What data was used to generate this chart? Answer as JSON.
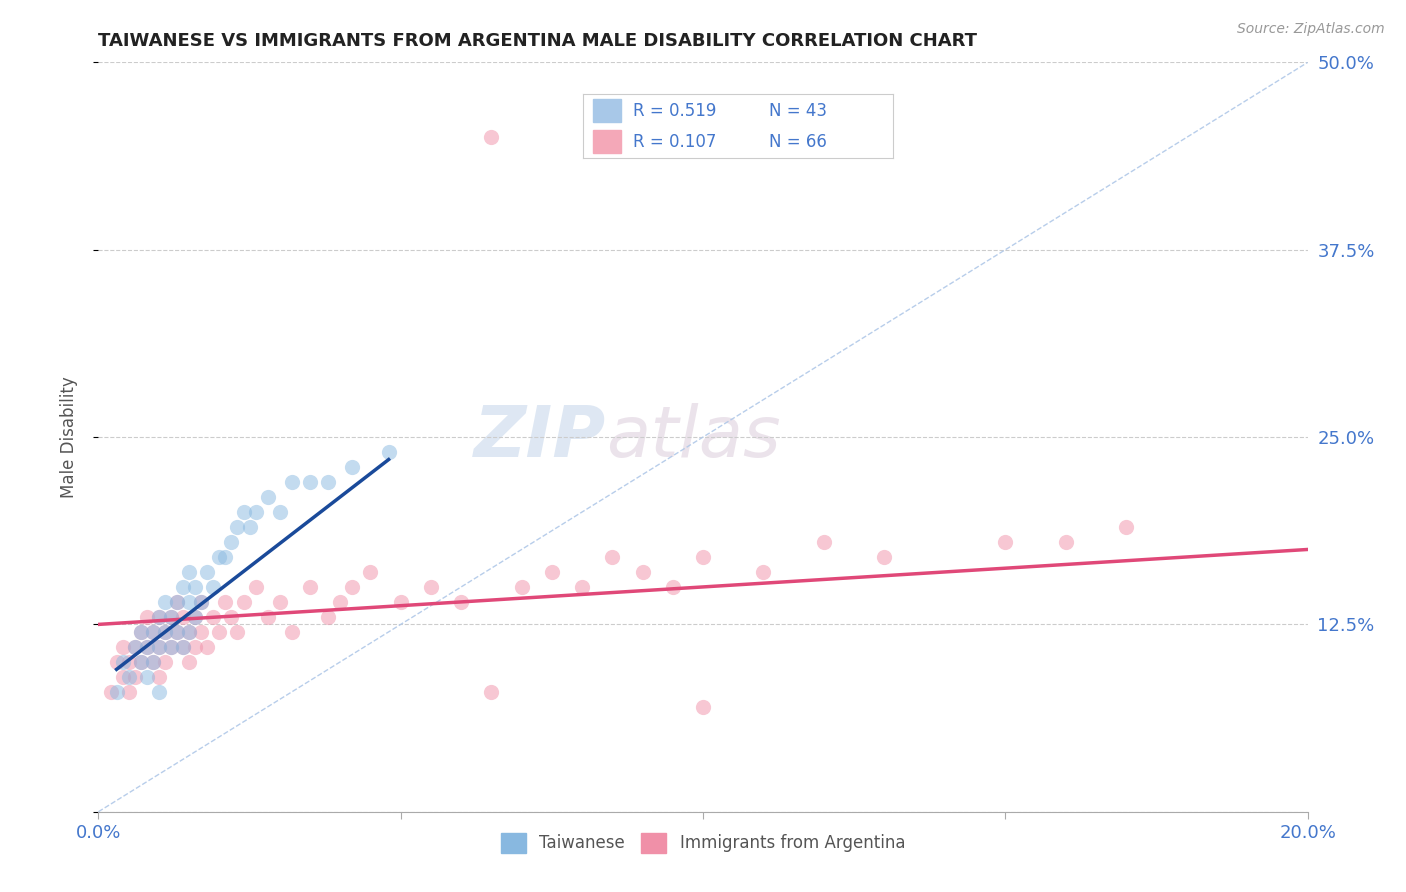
{
  "title": "TAIWANESE VS IMMIGRANTS FROM ARGENTINA MALE DISABILITY CORRELATION CHART",
  "source_text": "Source: ZipAtlas.com",
  "ylabel": "Male Disability",
  "xmin": 0.0,
  "xmax": 0.2,
  "ymin": 0.0,
  "ymax": 0.5,
  "yticks": [
    0.0,
    0.125,
    0.25,
    0.375,
    0.5
  ],
  "ytick_labels": [
    "",
    "12.5%",
    "25.0%",
    "37.5%",
    "50.0%"
  ],
  "xticks": [
    0.0,
    0.05,
    0.1,
    0.15,
    0.2
  ],
  "xtick_labels": [
    "0.0%",
    "",
    "",
    "",
    "20.0%"
  ],
  "legend_entries": [
    {
      "label": "Taiwanese",
      "color": "#a8c8e8",
      "R": 0.519,
      "N": 43
    },
    {
      "label": "Immigrants from Argentina",
      "color": "#f4a8b8",
      "R": 0.107,
      "N": 66
    }
  ],
  "watermark_zip": "ZIP",
  "watermark_atlas": "atlas",
  "blue_scatter_color": "#88b8e0",
  "pink_scatter_color": "#f090a8",
  "blue_line_color": "#1a4a9a",
  "pink_line_color": "#e04878",
  "ref_line_color": "#b0c8e8",
  "grid_color": "#cccccc",
  "title_color": "#222222",
  "axis_label_color": "#555555",
  "tick_label_color": "#4477cc",
  "scatter_size": 120,
  "scatter_alpha": 0.5,
  "taiwanese_x": [
    0.003,
    0.004,
    0.005,
    0.006,
    0.007,
    0.007,
    0.008,
    0.008,
    0.009,
    0.009,
    0.01,
    0.01,
    0.01,
    0.011,
    0.011,
    0.012,
    0.012,
    0.013,
    0.013,
    0.014,
    0.014,
    0.015,
    0.015,
    0.015,
    0.016,
    0.016,
    0.017,
    0.018,
    0.019,
    0.02,
    0.021,
    0.022,
    0.023,
    0.024,
    0.025,
    0.026,
    0.028,
    0.03,
    0.032,
    0.035,
    0.038,
    0.042,
    0.048
  ],
  "taiwanese_y": [
    0.08,
    0.1,
    0.09,
    0.11,
    0.1,
    0.12,
    0.09,
    0.11,
    0.1,
    0.12,
    0.11,
    0.13,
    0.08,
    0.12,
    0.14,
    0.11,
    0.13,
    0.12,
    0.14,
    0.11,
    0.15,
    0.12,
    0.14,
    0.16,
    0.13,
    0.15,
    0.14,
    0.16,
    0.15,
    0.17,
    0.17,
    0.18,
    0.19,
    0.2,
    0.19,
    0.2,
    0.21,
    0.2,
    0.22,
    0.22,
    0.22,
    0.23,
    0.24
  ],
  "argentina_x": [
    0.002,
    0.003,
    0.004,
    0.004,
    0.005,
    0.005,
    0.006,
    0.006,
    0.007,
    0.007,
    0.008,
    0.008,
    0.009,
    0.009,
    0.01,
    0.01,
    0.01,
    0.011,
    0.011,
    0.012,
    0.012,
    0.013,
    0.013,
    0.014,
    0.014,
    0.015,
    0.015,
    0.016,
    0.016,
    0.017,
    0.017,
    0.018,
    0.019,
    0.02,
    0.021,
    0.022,
    0.023,
    0.024,
    0.026,
    0.028,
    0.03,
    0.032,
    0.035,
    0.038,
    0.04,
    0.042,
    0.045,
    0.05,
    0.055,
    0.06,
    0.065,
    0.07,
    0.075,
    0.08,
    0.085,
    0.09,
    0.095,
    0.1,
    0.11,
    0.12,
    0.13,
    0.065,
    0.1,
    0.15,
    0.16,
    0.17
  ],
  "argentina_y": [
    0.08,
    0.1,
    0.09,
    0.11,
    0.1,
    0.08,
    0.11,
    0.09,
    0.12,
    0.1,
    0.11,
    0.13,
    0.1,
    0.12,
    0.11,
    0.09,
    0.13,
    0.12,
    0.1,
    0.11,
    0.13,
    0.12,
    0.14,
    0.11,
    0.13,
    0.1,
    0.12,
    0.13,
    0.11,
    0.14,
    0.12,
    0.11,
    0.13,
    0.12,
    0.14,
    0.13,
    0.12,
    0.14,
    0.15,
    0.13,
    0.14,
    0.12,
    0.15,
    0.13,
    0.14,
    0.15,
    0.16,
    0.14,
    0.15,
    0.14,
    0.08,
    0.15,
    0.16,
    0.15,
    0.17,
    0.16,
    0.15,
    0.17,
    0.16,
    0.18,
    0.17,
    0.45,
    0.07,
    0.18,
    0.18,
    0.19
  ],
  "blue_trend_x": [
    0.003,
    0.048
  ],
  "blue_trend_y": [
    0.095,
    0.235
  ],
  "pink_trend_x": [
    0.0,
    0.2
  ],
  "pink_trend_y": [
    0.125,
    0.175
  ],
  "ref_line_x": [
    0.0,
    0.2
  ],
  "ref_line_y": [
    0.0,
    0.5
  ]
}
